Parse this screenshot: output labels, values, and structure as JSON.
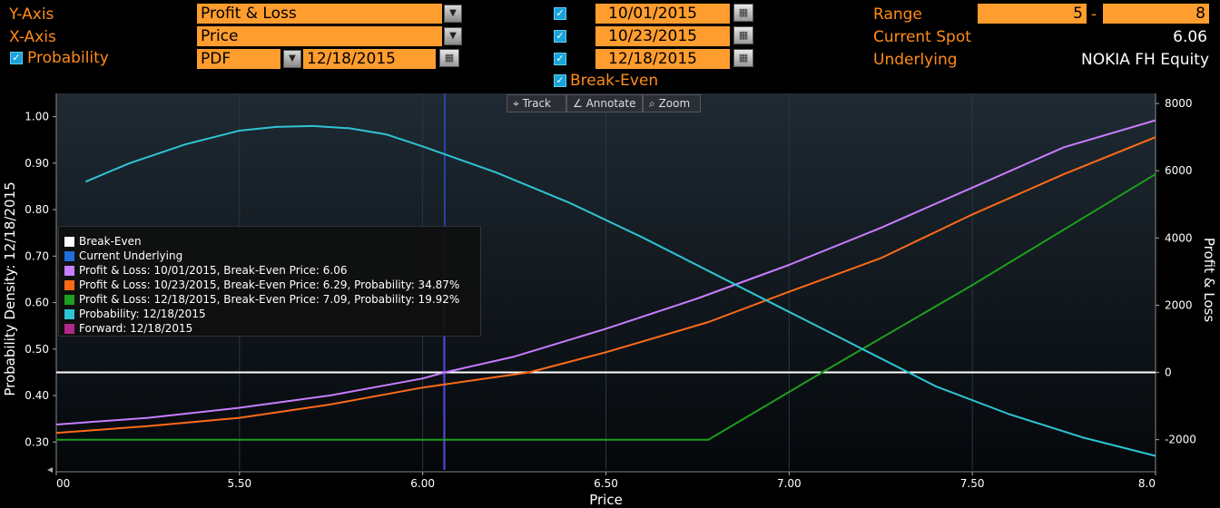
{
  "controls": {
    "y_axis_label": "Y-Axis",
    "y_axis_value": "Profit & Loss",
    "x_axis_label": "X-Axis",
    "x_axis_value": "Price",
    "probability_label": "Probability",
    "probability_value": "PDF",
    "probability_date": "12/18/2015",
    "dates": [
      "10/01/2015",
      "10/23/2015",
      "12/18/2015"
    ],
    "break_even_label": "Break-Even",
    "range_label": "Range",
    "range_from": "5",
    "range_sep": "-",
    "range_to": "8",
    "current_spot_label": "Current Spot",
    "current_spot_value": "6.06",
    "underlying_label": "Underlying",
    "underlying_value": "NOKIA FH Equity"
  },
  "toolbar": {
    "track": "Track",
    "annotate": "Annotate",
    "zoom": "Zoom"
  },
  "legend": [
    {
      "label": "Break-Even",
      "color": "#ffffff"
    },
    {
      "label": "Current Underlying",
      "color": "#1e6fd9"
    },
    {
      "label": "Profit & Loss: 10/01/2015, Break-Even Price: 6.06",
      "color": "#c77dff"
    },
    {
      "label": "Profit & Loss: 10/23/2015, Break-Even Price: 6.29, Probability: 34.87%",
      "color": "#ff6a1a"
    },
    {
      "label": "Profit & Loss: 12/18/2015, Break-Even Price: 7.09, Probability: 19.92%",
      "color": "#1e9e1e"
    },
    {
      "label": "Probability: 12/18/2015",
      "color": "#2ec4d4"
    },
    {
      "label": "Forward: 12/18/2015",
      "color": "#b0288a"
    }
  ],
  "chart_data": {
    "type": "line",
    "xlabel": "Price",
    "ylabel_left": "Probability Density: 12/18/2015",
    "ylabel_right": "Profit & Loss",
    "xlim": [
      5.0,
      8.0
    ],
    "ylim_left": [
      0.24,
      1.05
    ],
    "ylim_right": [
      -2900,
      8300
    ],
    "x_ticks": [
      "00",
      "5.50",
      "6.00",
      "6.50",
      "7.00",
      "7.50",
      "8.0"
    ],
    "x_tick_values": [
      5.0,
      5.5,
      6.0,
      6.5,
      7.0,
      7.5,
      8.0
    ],
    "y_left_ticks": [
      "0.30",
      "0.40",
      "0.50",
      "0.60",
      "0.70",
      "0.80",
      "0.90",
      "1.00"
    ],
    "y_left_tick_values": [
      0.3,
      0.4,
      0.5,
      0.6,
      0.7,
      0.8,
      0.9,
      1.0
    ],
    "y_right_ticks": [
      "-2000",
      "0",
      "2000",
      "4000",
      "6000",
      "8000"
    ],
    "y_right_tick_values": [
      -2000,
      0,
      2000,
      4000,
      6000,
      8000
    ],
    "break_even_y": 0,
    "current_underlying_x": 6.06,
    "series": [
      {
        "name": "Profit & Loss: 10/01/2015",
        "axis": "right",
        "color": "#c77dff",
        "x": [
          5.0,
          5.25,
          5.5,
          5.75,
          6.0,
          6.06,
          6.25,
          6.5,
          6.75,
          7.0,
          7.25,
          7.5,
          7.75,
          8.0
        ],
        "y": [
          -1550,
          -1350,
          -1050,
          -680,
          -180,
          0,
          470,
          1300,
          2200,
          3200,
          4300,
          5500,
          6700,
          7500
        ]
      },
      {
        "name": "Profit & Loss: 10/23/2015",
        "axis": "right",
        "color": "#ff6a1a",
        "x": [
          5.0,
          5.25,
          5.5,
          5.75,
          6.0,
          6.29,
          6.5,
          6.78,
          7.0,
          7.25,
          7.5,
          7.75,
          8.0
        ],
        "y": [
          -1800,
          -1600,
          -1350,
          -950,
          -450,
          0,
          600,
          1500,
          2400,
          3400,
          4700,
          5900,
          7000
        ]
      },
      {
        "name": "Profit & Loss: 12/18/2015",
        "axis": "right",
        "color": "#1e9e1e",
        "x": [
          5.0,
          6.78,
          7.09,
          7.5,
          8.0
        ],
        "y": [
          -2000,
          -2000,
          0,
          2600,
          5900
        ]
      },
      {
        "name": "Probability: 12/18/2015",
        "axis": "left",
        "color": "#2ec4d4",
        "x": [
          5.08,
          5.2,
          5.35,
          5.5,
          5.6,
          5.7,
          5.8,
          5.9,
          6.0,
          6.2,
          6.4,
          6.6,
          6.8,
          7.0,
          7.2,
          7.4,
          7.6,
          7.8,
          8.0
        ],
        "y": [
          0.86,
          0.9,
          0.94,
          0.97,
          0.978,
          0.98,
          0.975,
          0.962,
          0.936,
          0.88,
          0.815,
          0.74,
          0.66,
          0.58,
          0.5,
          0.42,
          0.36,
          0.31,
          0.27
        ]
      }
    ]
  }
}
